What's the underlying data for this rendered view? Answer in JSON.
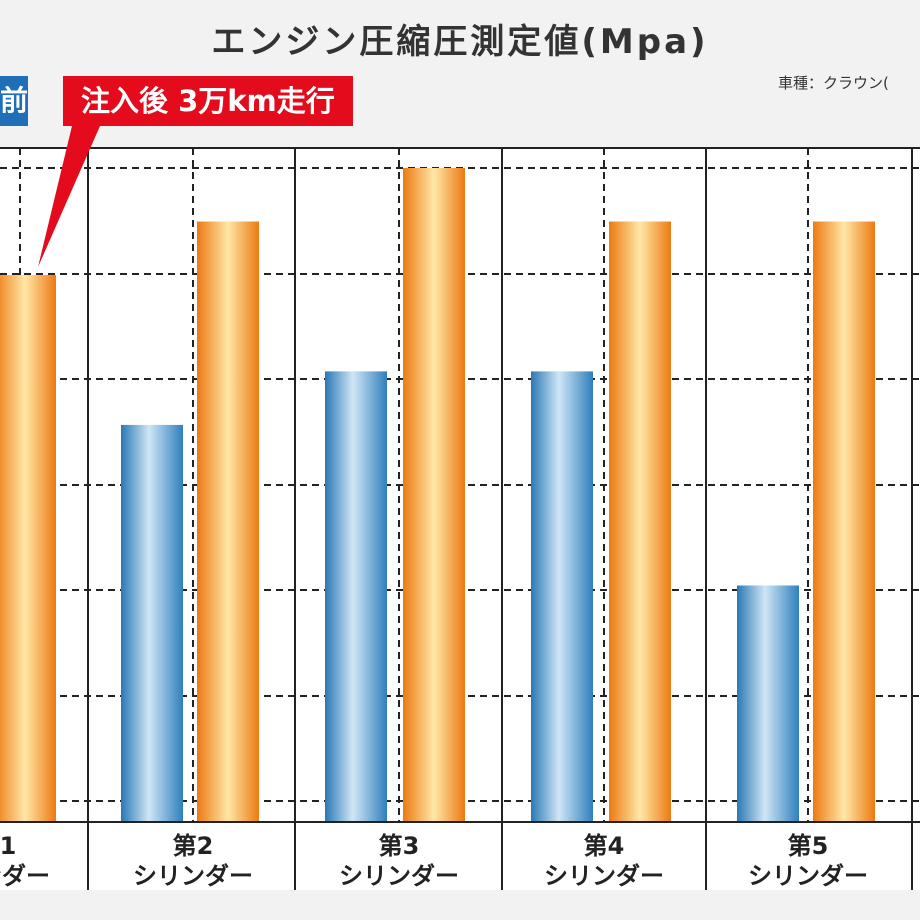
{
  "title": "エンジン圧縮圧測定値(Mpa)",
  "vehicle_note": "車種：クラウン(",
  "legend": {
    "before_label": "前",
    "after_label": "注入後 3万km走行",
    "before_color": "#3b8ac4",
    "after_color": "#f08a1c",
    "callout_color": "#e30b1c"
  },
  "chart_data": {
    "type": "bar",
    "title": "エンジン圧縮圧測定値(Mpa)",
    "categories": [
      {
        "line1": "1",
        "line2": "ンダー"
      },
      {
        "line1": "第2",
        "line2": "シリンダー"
      },
      {
        "line1": "第3",
        "line2": "シリンダー"
      },
      {
        "line1": "第4",
        "line2": "シリンダー"
      },
      {
        "line1": "第5",
        "line2": "シリンダー"
      }
    ],
    "series": [
      {
        "name": "前",
        "color": "#3b8ac4",
        "values": [
          null,
          3.7,
          4.2,
          4.2,
          2.2
        ]
      },
      {
        "name": "注入後 3万km走行",
        "color": "#f08a1c",
        "values": [
          5.1,
          5.6,
          6.1,
          5.6,
          5.6
        ]
      }
    ],
    "ylim": [
      0,
      6.1
    ],
    "grid": true,
    "xlabel": "",
    "ylabel": ""
  }
}
